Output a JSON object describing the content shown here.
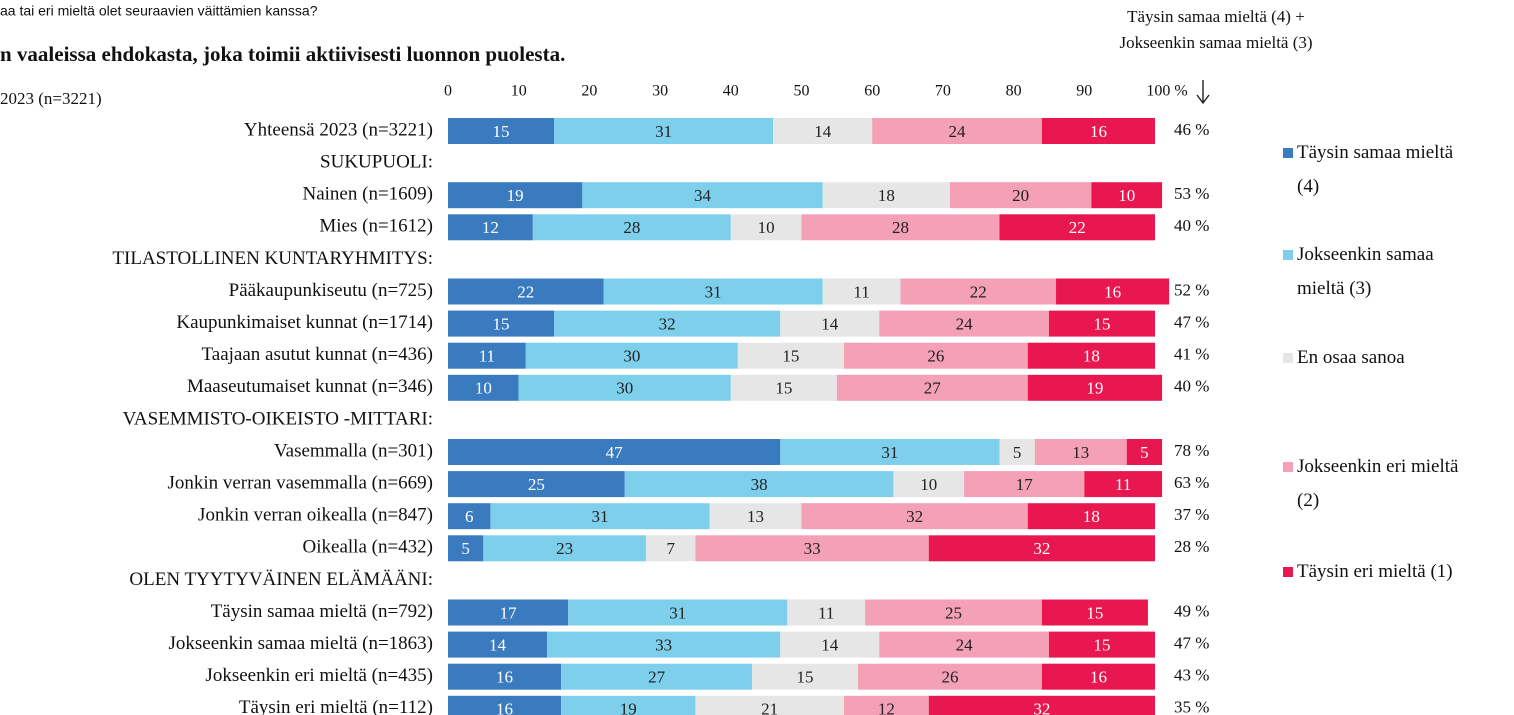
{
  "chart_data": {
    "type": "stacked_bar_horizontal",
    "title": "aa tai eri mieltä olet seuraavien väittämien kanssa?",
    "subtitle": "n vaaleissa ehdokasta, joka toimii aktiivisesti luonnon puolesta.",
    "note": "2023 (n=3221)",
    "totals_title": [
      "Täysin samaa mieltä (4) +",
      "Jokseenkin samaa mieltä (3)"
    ],
    "categories": [
      "Yhteensä 2023 (n=3221)",
      "SUKUPUOLI:",
      "Nainen (n=1609)",
      "Mies (n=1612)",
      "TILASTOLLINEN KUNTARYHMITYS:",
      "Pääkaupunkiseutu (n=725)",
      "Kaupunkimaiset kunnat (n=1714)",
      "Taajaan asutut kunnat (n=436)",
      "Maaseutumaiset kunnat (n=346)",
      "VASEMMISTO-OIKEISTO -MITTARI:",
      "Vasemmalla (n=301)",
      "Jonkin verran vasemmalla (n=669)",
      "Jonkin verran oikealla (n=847)",
      "Oikealla (n=432)",
      "OLEN TYYTYVÄINEN ELÄMÄÄNI:",
      "Täysin samaa mieltä (n=792)",
      "Jokseenkin samaa mieltä (n=1863)",
      "Jokseenkin eri mieltä (n=435)",
      "Täysin eri mieltä (n=112)"
    ],
    "series": [
      {
        "name": "Täysin samaa mieltä (4)",
        "color": "#3a7abf",
        "values": [
          15,
          null,
          19,
          12,
          null,
          22,
          15,
          11,
          10,
          null,
          47,
          25,
          6,
          5,
          null,
          17,
          14,
          16,
          16
        ]
      },
      {
        "name": "Jokseenkin samaa mieltä (3)",
        "color": "#7ecfec",
        "values": [
          31,
          null,
          34,
          28,
          null,
          31,
          32,
          30,
          30,
          null,
          31,
          38,
          31,
          23,
          null,
          31,
          33,
          27,
          19
        ]
      },
      {
        "name": "En osaa sanoa",
        "color": "#e6e6e6",
        "values": [
          14,
          null,
          18,
          10,
          null,
          11,
          14,
          15,
          15,
          null,
          5,
          10,
          13,
          7,
          null,
          11,
          14,
          15,
          21
        ]
      },
      {
        "name": "Jokseenkin eri mieltä (2)",
        "color": "#f4a0b7",
        "values": [
          24,
          null,
          20,
          28,
          null,
          22,
          24,
          26,
          27,
          null,
          13,
          17,
          32,
          33,
          null,
          25,
          24,
          26,
          12
        ]
      },
      {
        "name": "Täysin eri mieltä (1)",
        "color": "#e8174f",
        "values": [
          16,
          null,
          10,
          22,
          null,
          16,
          15,
          18,
          19,
          null,
          5,
          11,
          18,
          32,
          null,
          15,
          15,
          16,
          32
        ]
      }
    ],
    "totals": {
      "values": [
        46,
        null,
        53,
        40,
        null,
        52,
        47,
        41,
        40,
        null,
        78,
        63,
        37,
        28,
        null,
        49,
        47,
        43,
        35
      ],
      "value_labels": [
        "46 %",
        null,
        "53 %",
        "40 %",
        null,
        "52 %",
        "47 %",
        "41 %",
        "40 %",
        null,
        "78 %",
        "63 %",
        "37 %",
        "28 %",
        null,
        "49 %",
        "47 %",
        "43 %",
        "35 %"
      ]
    },
    "xlim": [
      0,
      100
    ],
    "xticks": [
      0,
      10,
      20,
      30,
      40,
      50,
      60,
      70,
      80,
      90,
      {
        "value": 100,
        "label": "100 %"
      }
    ],
    "grid": false,
    "legend": "right"
  }
}
